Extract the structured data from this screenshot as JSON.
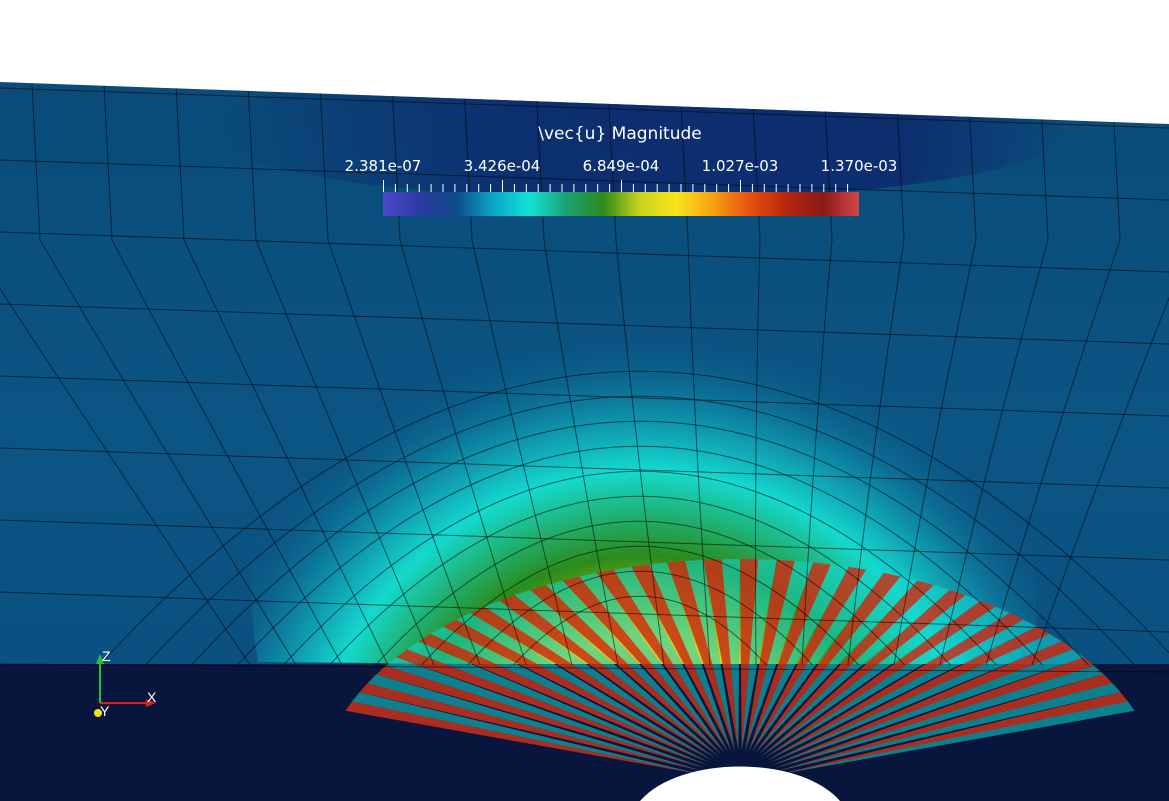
{
  "scalar_bar": {
    "title": "\\vec{u} Magnitude",
    "labels": [
      "2.381e-07",
      "3.426e-04",
      "6.849e-04",
      "1.027e-03",
      "1.370e-03"
    ],
    "range": [
      2.381e-07,
      0.00137
    ],
    "colormap": [
      "#4a4acb",
      "#2d3aa0",
      "#0f4a8a",
      "#0aa6c8",
      "#12e0d6",
      "#1aa374",
      "#2c8a1a",
      "#c8d21c",
      "#f6e61a",
      "#f7a212",
      "#e8520e",
      "#b8260c",
      "#8a1a16",
      "#d2484a"
    ]
  },
  "axes": {
    "x_label": "X",
    "y_label": "Y",
    "z_label": "Z",
    "colors": {
      "x": "#e02020",
      "y": "#f0e020",
      "z": "#20c040"
    }
  },
  "colors": {
    "background": "#ffffff",
    "field_low": "#003a6b",
    "field_mid": "#14d9cf",
    "field_green": "#2a8b1b",
    "field_yellow": "#e3d31a",
    "field_hot": "#c8311a",
    "dark_bottom": "#08163d"
  }
}
